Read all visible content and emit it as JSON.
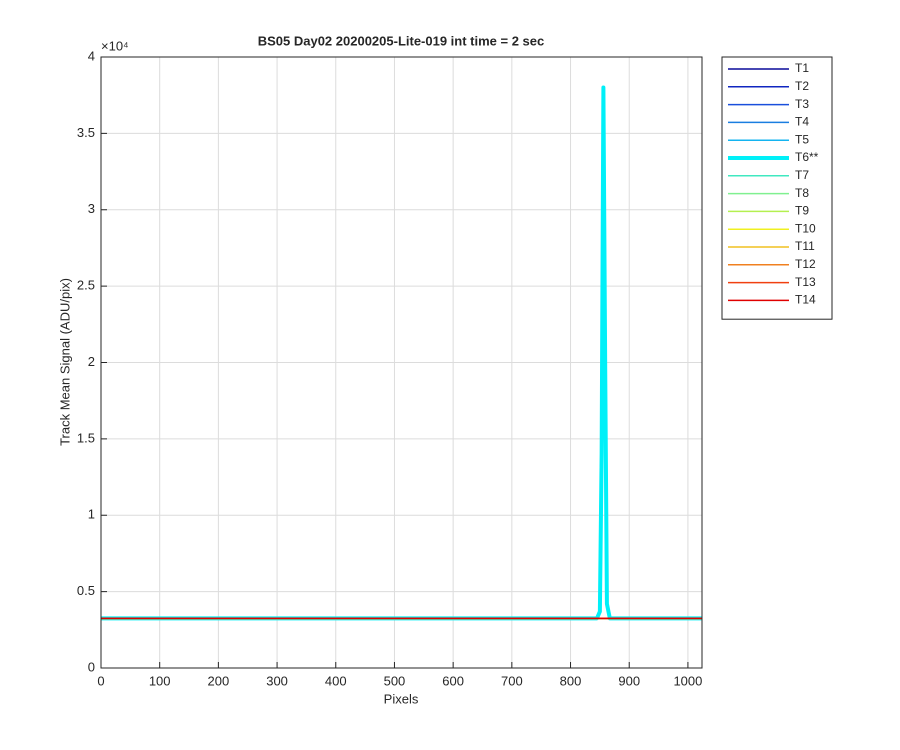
{
  "chart_data": {
    "type": "line",
    "title": "BS05 Day02 20200205-Lite-019 int time = 2 sec",
    "x_label": "Pixels",
    "y_label": "Track Mean Signal (ADU/pix)",
    "y_multiplier": "×10⁴",
    "xlim": [
      0,
      1024
    ],
    "ylim": [
      0,
      40000
    ],
    "xticks": [
      0,
      100,
      200,
      300,
      400,
      500,
      600,
      700,
      800,
      900,
      1000
    ],
    "yticks": [
      0,
      {
        "value": 5000,
        "label": "0.5"
      },
      {
        "value": 10000,
        "label": "1"
      },
      {
        "value": 15000,
        "label": "1.5"
      },
      {
        "value": 20000,
        "label": "2"
      },
      {
        "value": 25000,
        "label": "2.5"
      },
      {
        "value": 30000,
        "label": "3"
      },
      {
        "value": 35000,
        "label": "3.5"
      },
      {
        "value": 40000,
        "label": "4"
      }
    ],
    "grid": true,
    "legend": "outside-right",
    "x": [
      0,
      200,
      400,
      600,
      800,
      845,
      850,
      853,
      856,
      859,
      862,
      867,
      900,
      1000,
      1024
    ],
    "series": [
      {
        "name": "T1",
        "color": "#0a0a9a",
        "line_width": 1.5,
        "values": [
          3250,
          3250,
          3250,
          3250,
          3250,
          3250,
          3250,
          3250,
          3250,
          3250,
          3250,
          3250,
          3250,
          3250,
          3250
        ]
      },
      {
        "name": "T2",
        "color": "#1026c0",
        "line_width": 1.5,
        "values": [
          3250,
          3250,
          3250,
          3250,
          3250,
          3250,
          3250,
          3250,
          3250,
          3250,
          3250,
          3250,
          3250,
          3250,
          3250
        ]
      },
      {
        "name": "T3",
        "color": "#1a4fdc",
        "line_width": 1.5,
        "values": [
          3250,
          3250,
          3250,
          3250,
          3250,
          3250,
          3250,
          3250,
          3250,
          3250,
          3250,
          3250,
          3250,
          3250,
          3250
        ]
      },
      {
        "name": "T4",
        "color": "#1a7ee0",
        "line_width": 1.5,
        "values": [
          3250,
          3250,
          3250,
          3250,
          3250,
          3250,
          3250,
          3250,
          3250,
          3250,
          3250,
          3250,
          3250,
          3250,
          3250
        ]
      },
      {
        "name": "T5",
        "color": "#14b4f0",
        "line_width": 1.5,
        "values": [
          3250,
          3250,
          3250,
          3250,
          3250,
          3250,
          3250,
          3250,
          3250,
          3250,
          3250,
          3250,
          3250,
          3250,
          3250
        ]
      },
      {
        "name": "T6**",
        "color": "#00f0f8",
        "line_width": 4,
        "values": [
          3250,
          3250,
          3250,
          3250,
          3250,
          3250,
          3700,
          14000,
          38000,
          20000,
          4200,
          3250,
          3250,
          3250,
          3250
        ]
      },
      {
        "name": "T7",
        "color": "#40e8c0",
        "line_width": 1.5,
        "values": [
          3250,
          3250,
          3250,
          3250,
          3250,
          3250,
          3250,
          3250,
          3250,
          3250,
          3250,
          3250,
          3250,
          3250,
          3250
        ]
      },
      {
        "name": "T8",
        "color": "#80f090",
        "line_width": 1.5,
        "values": [
          3250,
          3250,
          3250,
          3250,
          3250,
          3250,
          3250,
          3250,
          3250,
          3250,
          3250,
          3250,
          3250,
          3250,
          3250
        ]
      },
      {
        "name": "T9",
        "color": "#b4f050",
        "line_width": 1.5,
        "values": [
          3250,
          3250,
          3250,
          3250,
          3250,
          3250,
          3250,
          3250,
          3250,
          3250,
          3250,
          3250,
          3250,
          3250,
          3250
        ]
      },
      {
        "name": "T10",
        "color": "#f0f020",
        "line_width": 1.5,
        "values": [
          3250,
          3250,
          3250,
          3250,
          3250,
          3250,
          3250,
          3250,
          3250,
          3250,
          3250,
          3250,
          3250,
          3250,
          3250
        ]
      },
      {
        "name": "T11",
        "color": "#f0c020",
        "line_width": 1.5,
        "values": [
          3250,
          3250,
          3250,
          3250,
          3250,
          3250,
          3250,
          3250,
          3250,
          3250,
          3250,
          3250,
          3250,
          3250,
          3250
        ]
      },
      {
        "name": "T12",
        "color": "#f08020",
        "line_width": 1.5,
        "values": [
          3250,
          3250,
          3250,
          3250,
          3250,
          3250,
          3250,
          3250,
          3250,
          3250,
          3250,
          3250,
          3250,
          3250,
          3250
        ]
      },
      {
        "name": "T13",
        "color": "#f04010",
        "line_width": 1.5,
        "values": [
          3250,
          3250,
          3250,
          3250,
          3250,
          3250,
          3250,
          3250,
          3250,
          3250,
          3250,
          3250,
          3250,
          3250,
          3250
        ]
      },
      {
        "name": "T14",
        "color": "#e00000",
        "line_width": 1.5,
        "values": [
          3250,
          3250,
          3250,
          3250,
          3250,
          3250,
          3250,
          3250,
          3250,
          3250,
          3250,
          3250,
          3250,
          3250,
          3250
        ]
      }
    ]
  }
}
